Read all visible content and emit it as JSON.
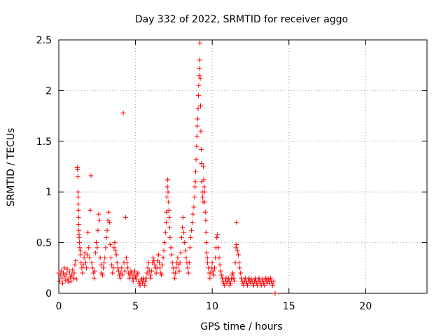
{
  "chart_data": {
    "type": "scatter",
    "title": "Day 332 of 2022, SRMTID for receiver aggo",
    "xlabel": "GPS time / hours",
    "ylabel": "SRMTID / TECUs",
    "xlim": [
      0,
      24
    ],
    "ylim": [
      0,
      2.5
    ],
    "xticks": [
      0,
      5,
      10,
      15,
      20
    ],
    "xtick_labels": [
      "0",
      "5",
      "10",
      "15",
      "20"
    ],
    "yticks": [
      0,
      0.5,
      1,
      1.5,
      2,
      2.5
    ],
    "ytick_labels": [
      "0",
      "0.5",
      "1",
      "1.5",
      "2",
      "2.5"
    ],
    "grid": true,
    "marker": "+",
    "series": [
      {
        "name": "SRMTID",
        "color": "#ff0000",
        "points": [
          [
            0.0,
            0.2
          ],
          [
            0.05,
            0.12
          ],
          [
            0.1,
            0.18
          ],
          [
            0.15,
            0.22
          ],
          [
            0.2,
            0.15
          ],
          [
            0.25,
            0.1
          ],
          [
            0.3,
            0.2
          ],
          [
            0.35,
            0.25
          ],
          [
            0.4,
            0.17
          ],
          [
            0.45,
            0.13
          ],
          [
            0.5,
            0.19
          ],
          [
            0.55,
            0.24
          ],
          [
            0.6,
            0.14
          ],
          [
            0.65,
            0.11
          ],
          [
            0.7,
            0.21
          ],
          [
            0.75,
            0.16
          ],
          [
            0.8,
            0.12
          ],
          [
            0.85,
            0.18
          ],
          [
            0.9,
            0.23
          ],
          [
            0.95,
            0.15
          ],
          [
            1.0,
            0.2
          ],
          [
            1.05,
            0.28
          ],
          [
            1.1,
            0.32
          ],
          [
            1.15,
            0.14
          ],
          [
            1.2,
            1.24
          ],
          [
            1.22,
            1.22
          ],
          [
            1.24,
            1.15
          ],
          [
            1.25,
            1.0
          ],
          [
            1.26,
            0.95
          ],
          [
            1.27,
            0.88
          ],
          [
            1.28,
            0.82
          ],
          [
            1.29,
            0.75
          ],
          [
            1.3,
            0.68
          ],
          [
            1.31,
            0.62
          ],
          [
            1.32,
            0.58
          ],
          [
            1.33,
            0.55
          ],
          [
            1.35,
            0.5
          ],
          [
            1.37,
            0.45
          ],
          [
            1.4,
            0.42
          ],
          [
            1.42,
            0.38
          ],
          [
            1.45,
            0.3
          ],
          [
            1.5,
            0.25
          ],
          [
            1.55,
            0.2
          ],
          [
            1.6,
            0.28
          ],
          [
            1.65,
            0.35
          ],
          [
            1.7,
            0.4
          ],
          [
            1.75,
            0.3
          ],
          [
            1.8,
            0.25
          ],
          [
            1.85,
            0.38
          ],
          [
            1.9,
            0.6
          ],
          [
            1.95,
            0.45
          ],
          [
            2.0,
            0.35
          ],
          [
            2.05,
            0.82
          ],
          [
            2.1,
            1.16
          ],
          [
            2.15,
            0.3
          ],
          [
            2.2,
            0.25
          ],
          [
            2.25,
            0.2
          ],
          [
            2.3,
            0.15
          ],
          [
            2.35,
            0.22
          ],
          [
            2.4,
            0.4
          ],
          [
            2.45,
            0.5
          ],
          [
            2.5,
            0.45
          ],
          [
            2.55,
            0.62
          ],
          [
            2.6,
            0.78
          ],
          [
            2.65,
            0.72
          ],
          [
            2.7,
            0.35
          ],
          [
            2.75,
            0.28
          ],
          [
            2.8,
            0.2
          ],
          [
            2.85,
            0.18
          ],
          [
            2.9,
            0.25
          ],
          [
            2.95,
            0.3
          ],
          [
            3.0,
            0.35
          ],
          [
            3.05,
            0.45
          ],
          [
            3.1,
            0.55
          ],
          [
            3.15,
            0.62
          ],
          [
            3.2,
            0.72
          ],
          [
            3.25,
            0.8
          ],
          [
            3.3,
            0.7
          ],
          [
            3.35,
            0.48
          ],
          [
            3.4,
            0.35
          ],
          [
            3.45,
            0.28
          ],
          [
            3.5,
            0.2
          ],
          [
            3.55,
            0.25
          ],
          [
            3.6,
            0.45
          ],
          [
            3.65,
            0.5
          ],
          [
            3.7,
            0.42
          ],
          [
            3.75,
            0.38
          ],
          [
            3.8,
            0.3
          ],
          [
            3.85,
            0.25
          ],
          [
            3.9,
            0.22
          ],
          [
            3.95,
            0.18
          ],
          [
            4.0,
            0.15
          ],
          [
            4.05,
            0.2
          ],
          [
            4.1,
            0.25
          ],
          [
            4.15,
            0.18
          ],
          [
            4.2,
            1.78
          ],
          [
            4.25,
            0.3
          ],
          [
            4.3,
            0.22
          ],
          [
            4.35,
            0.75
          ],
          [
            4.4,
            0.35
          ],
          [
            4.45,
            0.3
          ],
          [
            4.5,
            0.25
          ],
          [
            4.55,
            0.2
          ],
          [
            4.6,
            0.15
          ],
          [
            4.65,
            0.18
          ],
          [
            4.7,
            0.22
          ],
          [
            4.75,
            0.2
          ],
          [
            4.8,
            0.15
          ],
          [
            4.85,
            0.12
          ],
          [
            4.9,
            0.18
          ],
          [
            4.95,
            0.22
          ],
          [
            5.0,
            0.16
          ],
          [
            5.05,
            0.14
          ],
          [
            5.1,
            0.18
          ],
          [
            5.15,
            0.2
          ],
          [
            5.2,
            0.12
          ],
          [
            5.25,
            0.1
          ],
          [
            5.3,
            0.08
          ],
          [
            5.35,
            0.12
          ],
          [
            5.4,
            0.14
          ],
          [
            5.45,
            0.1
          ],
          [
            5.5,
            0.15
          ],
          [
            5.55,
            0.12
          ],
          [
            5.6,
            0.08
          ],
          [
            5.65,
            0.12
          ],
          [
            5.7,
            0.15
          ],
          [
            5.75,
            0.2
          ],
          [
            5.8,
            0.25
          ],
          [
            5.85,
            0.3
          ],
          [
            5.9,
            0.22
          ],
          [
            5.95,
            0.18
          ],
          [
            6.0,
            0.15
          ],
          [
            6.05,
            0.22
          ],
          [
            6.1,
            0.3
          ],
          [
            6.15,
            0.35
          ],
          [
            6.2,
            0.32
          ],
          [
            6.25,
            0.28
          ],
          [
            6.3,
            0.25
          ],
          [
            6.35,
            0.2
          ],
          [
            6.4,
            0.25
          ],
          [
            6.45,
            0.32
          ],
          [
            6.5,
            0.38
          ],
          [
            6.55,
            0.3
          ],
          [
            6.6,
            0.25
          ],
          [
            6.65,
            0.2
          ],
          [
            6.7,
            0.18
          ],
          [
            6.75,
            0.28
          ],
          [
            6.8,
            0.35
          ],
          [
            6.85,
            0.42
          ],
          [
            6.9,
            0.5
          ],
          [
            6.95,
            0.6
          ],
          [
            7.0,
            0.7
          ],
          [
            7.02,
            0.8
          ],
          [
            7.05,
            0.95
          ],
          [
            7.08,
            1.05
          ],
          [
            7.1,
            1.12
          ],
          [
            7.12,
            1.0
          ],
          [
            7.15,
            0.9
          ],
          [
            7.18,
            0.82
          ],
          [
            7.2,
            0.75
          ],
          [
            7.22,
            0.65
          ],
          [
            7.25,
            0.55
          ],
          [
            7.3,
            0.45
          ],
          [
            7.35,
            0.38
          ],
          [
            7.4,
            0.3
          ],
          [
            7.45,
            0.25
          ],
          [
            7.5,
            0.2
          ],
          [
            7.55,
            0.15
          ],
          [
            7.6,
            0.2
          ],
          [
            7.65,
            0.25
          ],
          [
            7.7,
            0.3
          ],
          [
            7.75,
            0.35
          ],
          [
            7.8,
            0.28
          ],
          [
            7.85,
            0.22
          ],
          [
            7.9,
            0.3
          ],
          [
            7.95,
            0.4
          ],
          [
            8.0,
            0.55
          ],
          [
            8.05,
            0.65
          ],
          [
            8.1,
            0.75
          ],
          [
            8.15,
            0.6
          ],
          [
            8.2,
            0.5
          ],
          [
            8.25,
            0.42
          ],
          [
            8.3,
            0.35
          ],
          [
            8.35,
            0.3
          ],
          [
            8.4,
            0.25
          ],
          [
            8.45,
            0.2
          ],
          [
            8.5,
            0.3
          ],
          [
            8.55,
            0.45
          ],
          [
            8.6,
            0.55
          ],
          [
            8.65,
            0.62
          ],
          [
            8.7,
            0.7
          ],
          [
            8.75,
            0.78
          ],
          [
            8.8,
            0.85
          ],
          [
            8.85,
            0.95
          ],
          [
            8.88,
            1.05
          ],
          [
            8.9,
            1.1
          ],
          [
            8.92,
            1.2
          ],
          [
            8.95,
            1.32
          ],
          [
            8.98,
            1.45
          ],
          [
            9.0,
            1.55
          ],
          [
            9.02,
            1.65
          ],
          [
            9.05,
            1.72
          ],
          [
            9.08,
            1.82
          ],
          [
            9.1,
            1.95
          ],
          [
            9.12,
            2.05
          ],
          [
            9.14,
            2.15
          ],
          [
            9.16,
            2.22
          ],
          [
            9.18,
            2.3
          ],
          [
            9.2,
            2.47
          ],
          [
            9.22,
            2.12
          ],
          [
            9.24,
            1.85
          ],
          [
            9.26,
            1.6
          ],
          [
            9.28,
            1.42
          ],
          [
            9.3,
            1.28
          ],
          [
            9.32,
            1.1
          ],
          [
            9.35,
            1.0
          ],
          [
            9.38,
            0.95
          ],
          [
            9.4,
            0.9
          ],
          [
            9.42,
            1.25
          ],
          [
            9.45,
            1.12
          ],
          [
            9.48,
            1.05
          ],
          [
            9.5,
            1.0
          ],
          [
            9.52,
            0.9
          ],
          [
            9.55,
            0.8
          ],
          [
            9.58,
            0.72
          ],
          [
            9.6,
            0.6
          ],
          [
            9.62,
            0.5
          ],
          [
            9.65,
            0.4
          ],
          [
            9.68,
            0.35
          ],
          [
            9.7,
            0.3
          ],
          [
            9.75,
            0.25
          ],
          [
            9.8,
            0.2
          ],
          [
            9.85,
            0.15
          ],
          [
            9.9,
            0.2
          ],
          [
            9.95,
            0.25
          ],
          [
            10.0,
            0.3
          ],
          [
            10.05,
            0.22
          ],
          [
            10.1,
            0.18
          ],
          [
            10.15,
            0.25
          ],
          [
            10.2,
            0.35
          ],
          [
            10.25,
            0.45
          ],
          [
            10.3,
            0.55
          ],
          [
            10.35,
            0.58
          ],
          [
            10.4,
            0.45
          ],
          [
            10.45,
            0.35
          ],
          [
            10.5,
            0.28
          ],
          [
            10.55,
            0.22
          ],
          [
            10.6,
            0.18
          ],
          [
            10.65,
            0.15
          ],
          [
            10.7,
            0.12
          ],
          [
            10.75,
            0.1
          ],
          [
            10.8,
            0.08
          ],
          [
            10.85,
            0.12
          ],
          [
            10.9,
            0.15
          ],
          [
            10.95,
            0.1
          ],
          [
            11.0,
            0.12
          ],
          [
            11.05,
            0.15
          ],
          [
            11.1,
            0.12
          ],
          [
            11.15,
            0.08
          ],
          [
            11.2,
            0.1
          ],
          [
            11.25,
            0.14
          ],
          [
            11.3,
            0.18
          ],
          [
            11.35,
            0.2
          ],
          [
            11.4,
            0.15
          ],
          [
            11.45,
            0.12
          ],
          [
            11.5,
            0.3
          ],
          [
            11.55,
            0.45
          ],
          [
            11.58,
            0.7
          ],
          [
            11.6,
            0.48
          ],
          [
            11.65,
            0.42
          ],
          [
            11.7,
            0.38
          ],
          [
            11.75,
            0.3
          ],
          [
            11.8,
            0.25
          ],
          [
            11.85,
            0.2
          ],
          [
            11.9,
            0.15
          ],
          [
            11.95,
            0.12
          ],
          [
            12.0,
            0.1
          ],
          [
            12.05,
            0.08
          ],
          [
            12.1,
            0.12
          ],
          [
            12.15,
            0.15
          ],
          [
            12.2,
            0.12
          ],
          [
            12.25,
            0.1
          ],
          [
            12.3,
            0.08
          ],
          [
            12.35,
            0.12
          ],
          [
            12.4,
            0.15
          ],
          [
            12.45,
            0.12
          ],
          [
            12.5,
            0.1
          ],
          [
            12.55,
            0.14
          ],
          [
            12.6,
            0.12
          ],
          [
            12.65,
            0.1
          ],
          [
            12.7,
            0.08
          ],
          [
            12.75,
            0.12
          ],
          [
            12.8,
            0.15
          ],
          [
            12.85,
            0.12
          ],
          [
            12.9,
            0.1
          ],
          [
            12.95,
            0.08
          ],
          [
            13.0,
            0.12
          ],
          [
            13.05,
            0.15
          ],
          [
            13.1,
            0.12
          ],
          [
            13.15,
            0.1
          ],
          [
            13.2,
            0.08
          ],
          [
            13.25,
            0.12
          ],
          [
            13.3,
            0.14
          ],
          [
            13.35,
            0.1
          ],
          [
            13.4,
            0.08
          ],
          [
            13.45,
            0.12
          ],
          [
            13.5,
            0.15
          ],
          [
            13.55,
            0.12
          ],
          [
            13.6,
            0.1
          ],
          [
            13.65,
            0.14
          ],
          [
            13.7,
            0.12
          ],
          [
            13.75,
            0.1
          ],
          [
            13.8,
            0.15
          ],
          [
            13.85,
            0.12
          ],
          [
            13.9,
            0.1
          ],
          [
            13.95,
            0.08
          ],
          [
            14.0,
            0.12
          ],
          [
            14.1,
            0.0
          ]
        ]
      }
    ]
  }
}
